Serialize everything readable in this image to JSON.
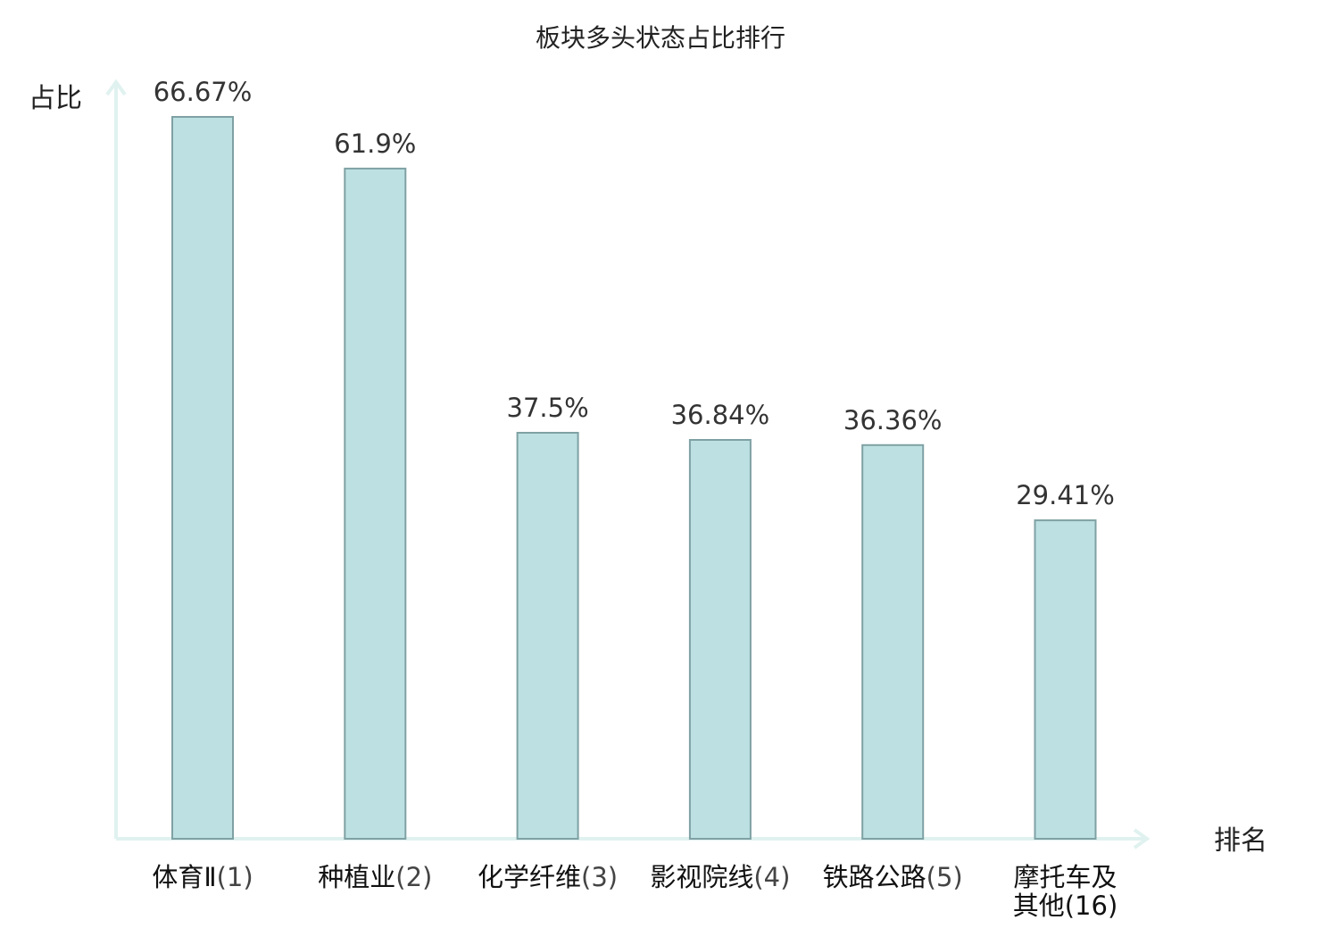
{
  "chart_data": {
    "type": "bar",
    "title": "板块多头状态占比排行",
    "ylabel": "占比",
    "xlabel": "排名",
    "ylim": [
      0,
      70
    ],
    "grid": false,
    "categories": [
      {
        "name": "体育Ⅱ",
        "rank": "(1)",
        "highlight": false
      },
      {
        "name": "种植业",
        "rank": "(2)",
        "highlight": false
      },
      {
        "name": "化学纤维",
        "rank": "(3)",
        "highlight": false
      },
      {
        "name": "影视院线",
        "rank": "(4)",
        "highlight": false
      },
      {
        "name": "铁路公路",
        "rank": "(5)",
        "highlight": false
      },
      {
        "name": "摩托车及其他",
        "rank": "(16)",
        "highlight": true
      }
    ],
    "values": [
      66.67,
      61.9,
      37.5,
      36.84,
      36.36,
      29.41
    ],
    "value_labels": [
      "66.67%",
      "61.9%",
      "37.5%",
      "36.84%",
      "36.36%",
      "29.41%"
    ]
  },
  "colors": {
    "bar_fill": "#bde1e3",
    "bar_stroke": "#7fa1a4",
    "axis": "#e0f2ef",
    "highlight_label": "#e8141c",
    "text": "#222222"
  }
}
